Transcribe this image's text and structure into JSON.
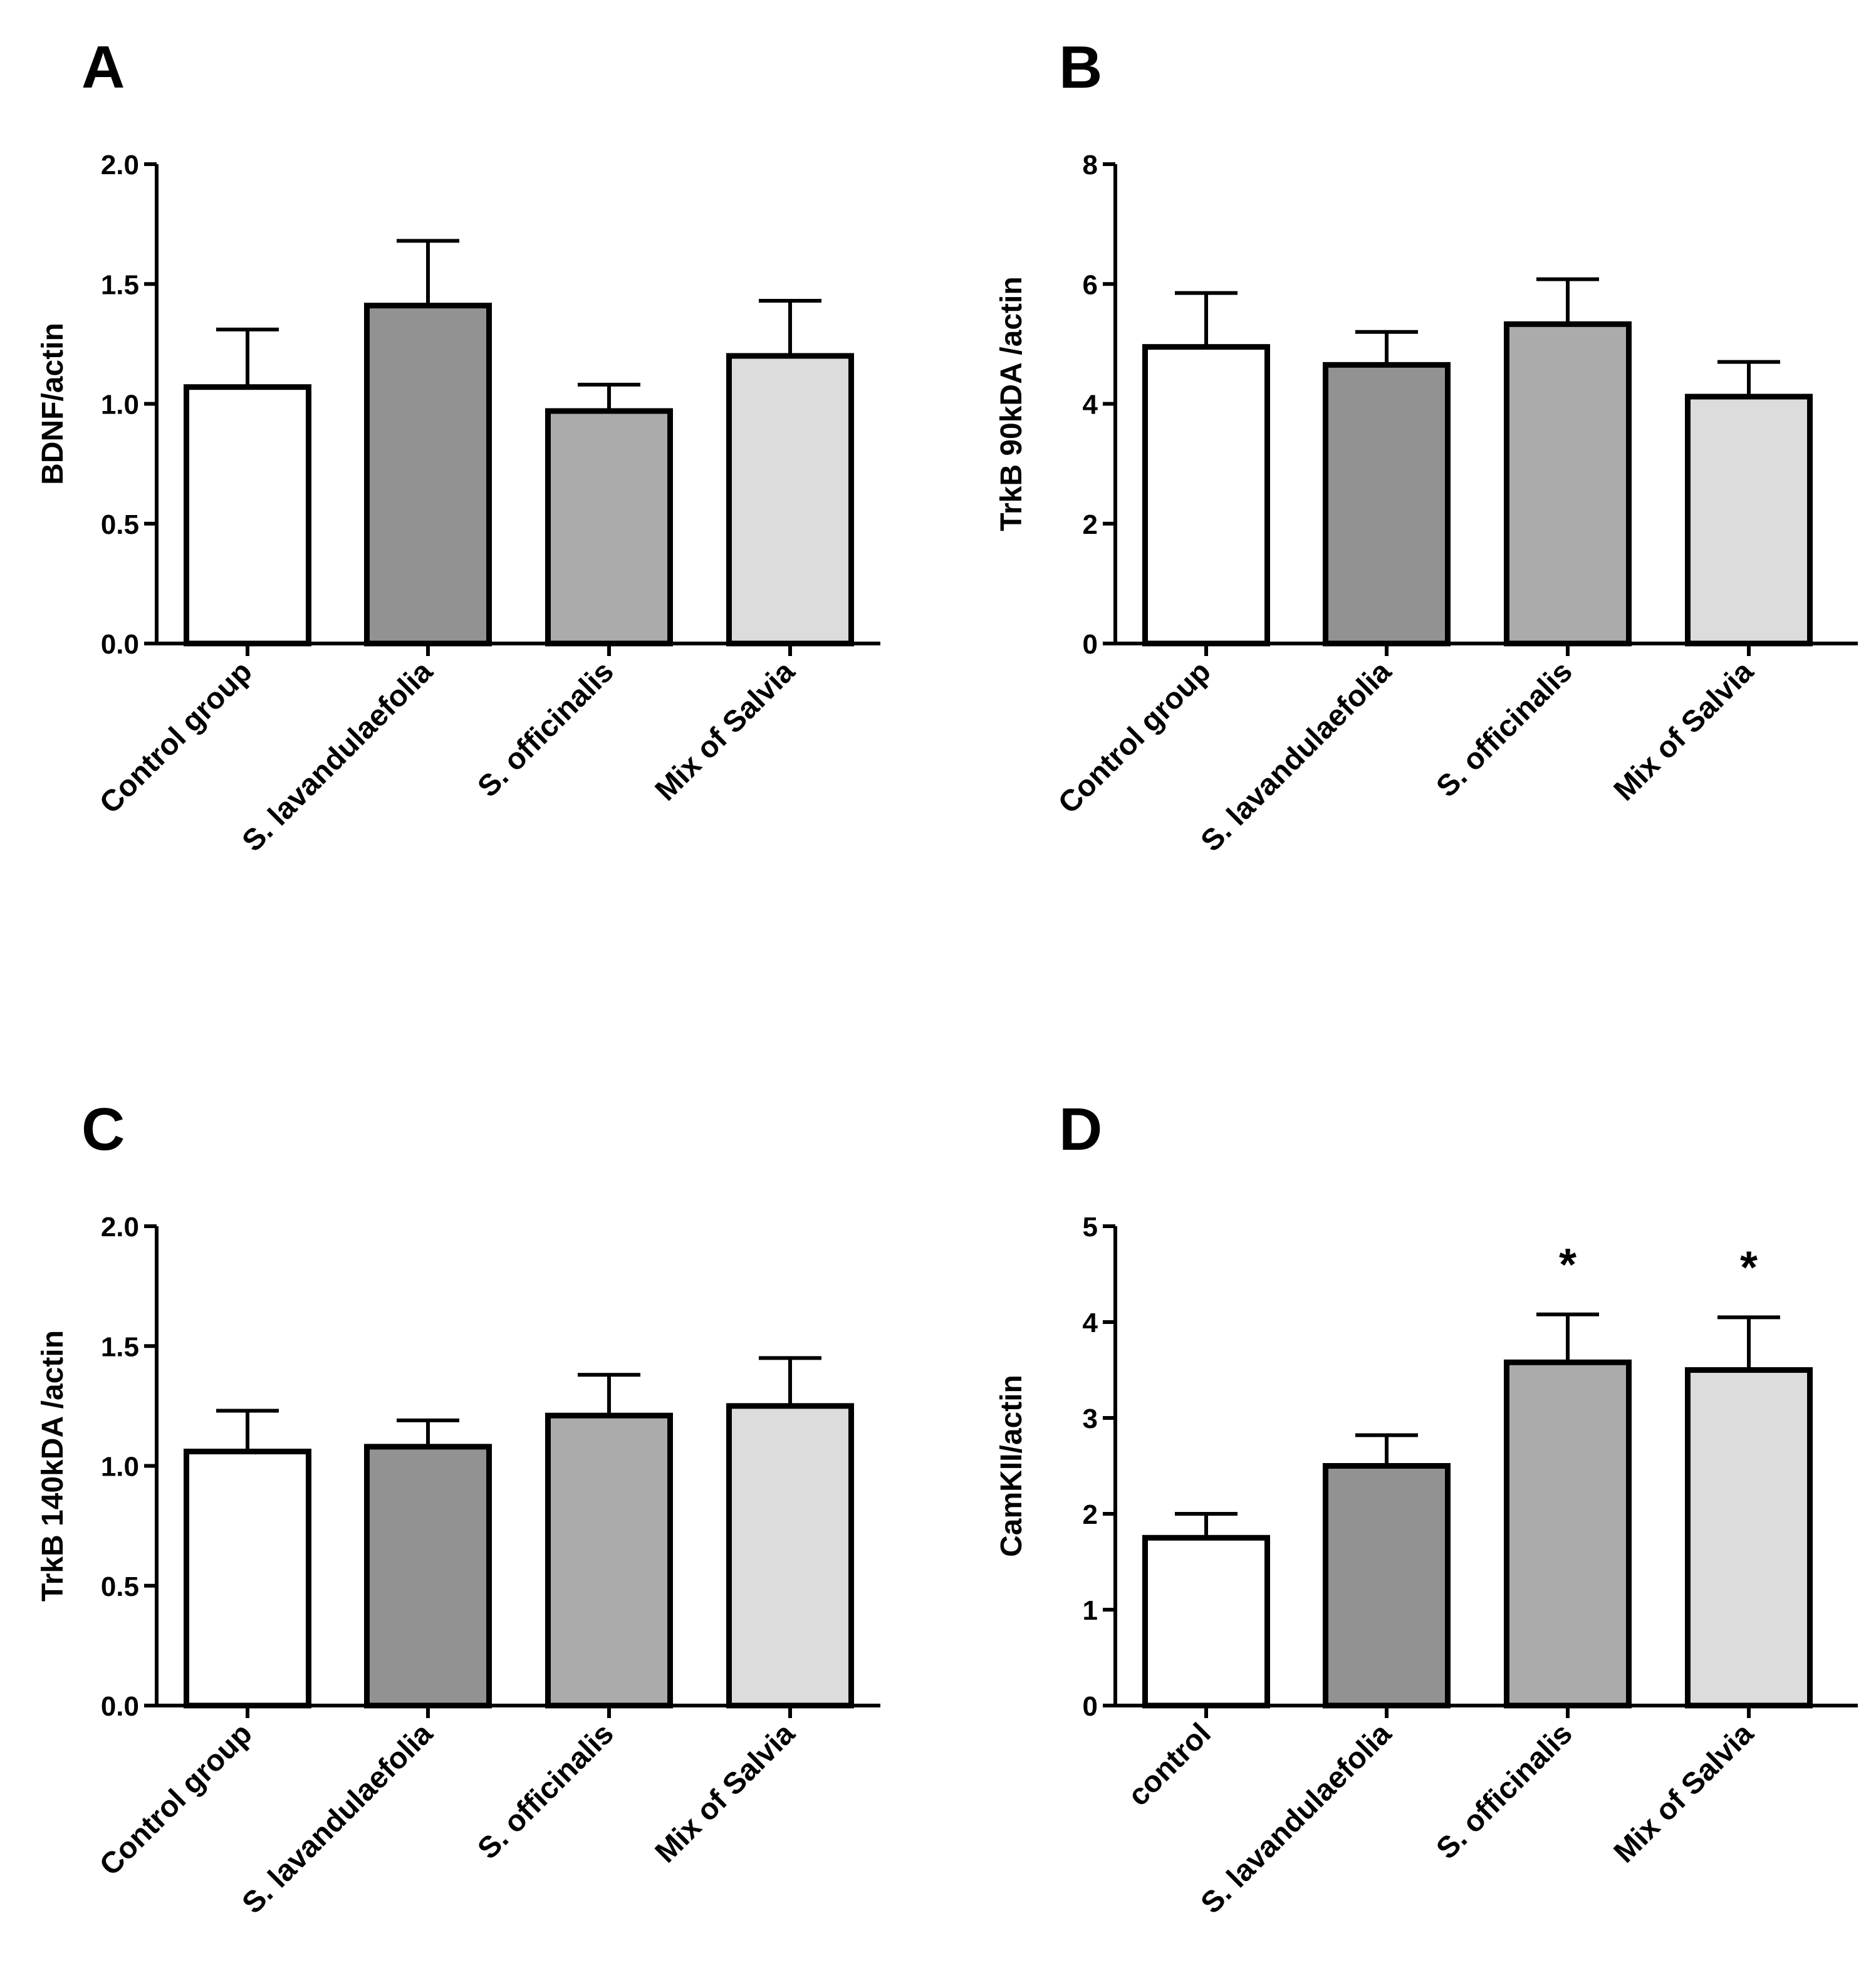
{
  "figure": {
    "bar_fills": [
      "#ffffff",
      "#929292",
      "#ababab",
      "#dcdcdc"
    ],
    "stroke_color": "#000000"
  },
  "chart_data": [
    {
      "panel": "A",
      "type": "bar",
      "ylabel": "BDNF/actin",
      "xlabel": "",
      "ylim": [
        0,
        2.0
      ],
      "yticks": [
        "0.0",
        "0.5",
        "1.0",
        "1.5",
        "2.0"
      ],
      "categories": [
        "Control group",
        "S. lavandulaefolia",
        "S. officinalis",
        "Mix of Salvia"
      ],
      "values": [
        1.07,
        1.41,
        0.97,
        1.2
      ],
      "errors": [
        0.24,
        0.27,
        0.11,
        0.23
      ],
      "significance": [
        "",
        "",
        "",
        ""
      ]
    },
    {
      "panel": "B",
      "type": "bar",
      "ylabel": "TrkB 90kDA /actin",
      "xlabel": "",
      "ylim": [
        0,
        8
      ],
      "yticks": [
        "0",
        "2",
        "4",
        "6",
        "8"
      ],
      "categories": [
        "Control group",
        "S. lavandulaefolia",
        "S. officinalis",
        "Mix of Salvia"
      ],
      "values": [
        4.95,
        4.65,
        5.33,
        4.12
      ],
      "errors": [
        0.9,
        0.55,
        0.75,
        0.58
      ],
      "significance": [
        "",
        "",
        "",
        ""
      ]
    },
    {
      "panel": "C",
      "type": "bar",
      "ylabel": "TrkB 140kDA /actin",
      "xlabel": "",
      "ylim": [
        0,
        2.0
      ],
      "yticks": [
        "0.0",
        "0.5",
        "1.0",
        "1.5",
        "2.0"
      ],
      "categories": [
        "Control group",
        "S. lavandulaefolia",
        "S. officinalis",
        "Mix of Salvia"
      ],
      "values": [
        1.06,
        1.08,
        1.21,
        1.25
      ],
      "errors": [
        0.17,
        0.11,
        0.17,
        0.2
      ],
      "significance": [
        "",
        "",
        "",
        ""
      ]
    },
    {
      "panel": "D",
      "type": "bar",
      "ylabel": "CamKII/actin",
      "xlabel": "",
      "ylim": [
        0,
        5
      ],
      "yticks": [
        "0",
        "1",
        "2",
        "3",
        "4",
        "5"
      ],
      "categories": [
        "control",
        "S. lavandulaefolia",
        "S. officinalis",
        "Mix of Salvia"
      ],
      "values": [
        1.75,
        2.5,
        3.58,
        3.5
      ],
      "errors": [
        0.25,
        0.32,
        0.5,
        0.55
      ],
      "significance": [
        "",
        "",
        "*",
        "*"
      ]
    }
  ]
}
